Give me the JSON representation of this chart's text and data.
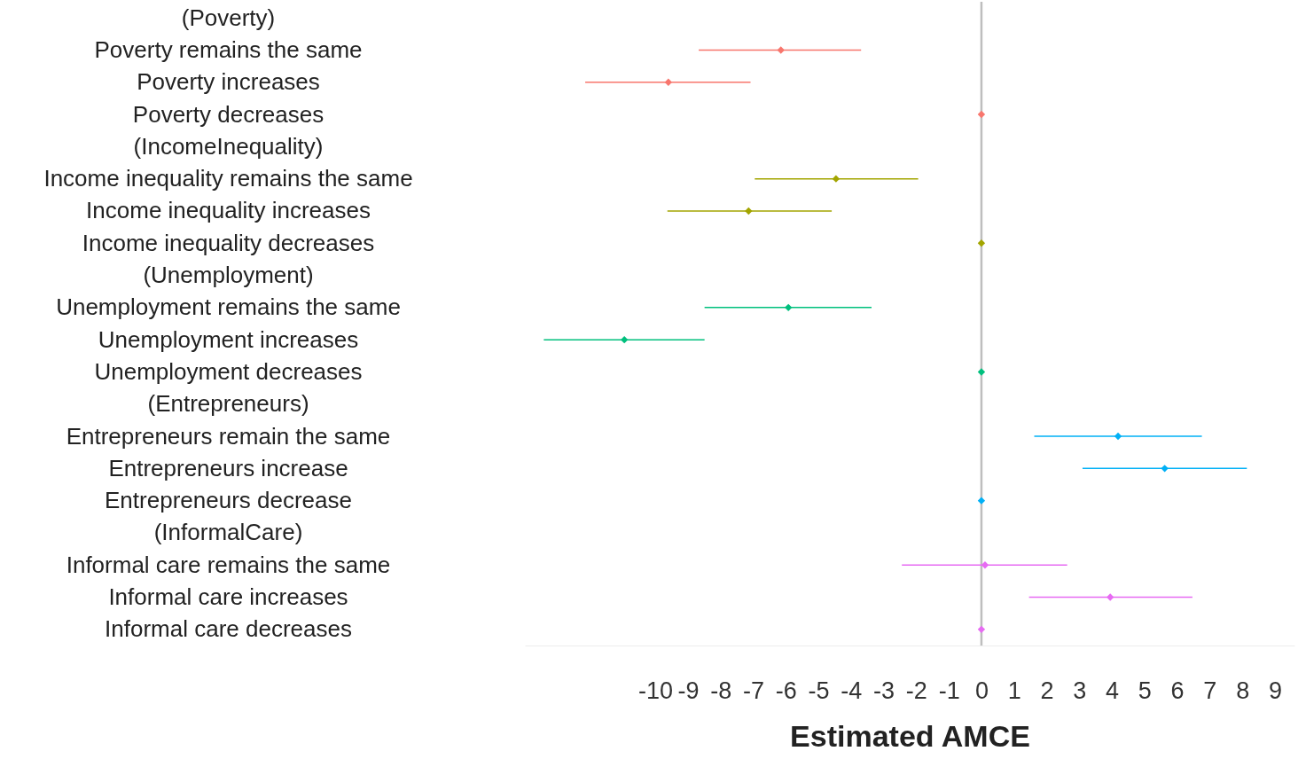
{
  "chart_data": {
    "type": "scatter",
    "xlabel": "Estimated AMCE",
    "categories": [
      "(Poverty)",
      "Poverty remains the same",
      "Poverty increases",
      "Poverty decreases",
      "(IncomeInequality)",
      "Income inequality remains the same",
      "Income inequality increases",
      "Income inequality decreases",
      "(Unemployment)",
      "Unemployment remains the same",
      "Unemployment increases",
      "Unemployment decreases",
      "(Entrepreneurs)",
      "Entrepreneurs remain the same",
      "Entrepreneurs increase",
      "Entrepreneurs decrease",
      "(InformalCare)",
      "Informal care remains the same",
      "Informal care increases",
      "Informal care decreases"
    ],
    "values": [
      null,
      -6.15,
      -9.6,
      0,
      null,
      -4.46,
      -7.14,
      0,
      null,
      -5.92,
      -10.95,
      0,
      null,
      4.19,
      5.62,
      0,
      null,
      0.11,
      3.95,
      0
    ],
    "errors": [
      null,
      [
        -8.67,
        -3.69
      ],
      [
        -12.15,
        -7.08
      ],
      null,
      null,
      [
        -6.95,
        -1.94
      ],
      [
        -9.63,
        -4.59
      ],
      null,
      null,
      [
        -8.49,
        -3.37
      ],
      [
        -13.42,
        -8.49
      ],
      null,
      null,
      [
        1.62,
        6.76
      ],
      [
        3.1,
        8.14
      ],
      null,
      null,
      [
        -2.44,
        2.63
      ],
      [
        1.46,
        6.47
      ],
      null
    ],
    "colors": [
      null,
      "#f8766d",
      "#f8766d",
      "#f8766d",
      null,
      "#a3a500",
      "#a3a500",
      "#a3a500",
      null,
      "#00bf7d",
      "#00bf7d",
      "#00bf7d",
      null,
      "#00b0f6",
      "#00b0f6",
      "#00b0f6",
      null,
      "#e76bf3",
      "#e76bf3",
      "#e76bf3"
    ],
    "orientation": "horizontal",
    "xlim": [
      -14,
      9.6
    ],
    "xticks": [
      -10,
      -9,
      -8,
      -7,
      -6,
      -5,
      -4,
      -3,
      -2,
      -1,
      0,
      1,
      2,
      3,
      4,
      5,
      6,
      7,
      8,
      9
    ],
    "ref_lines": [
      {
        "axis": "x",
        "value": 0,
        "color": "#bebebe"
      }
    ],
    "marker": "diamond",
    "grid": false
  }
}
